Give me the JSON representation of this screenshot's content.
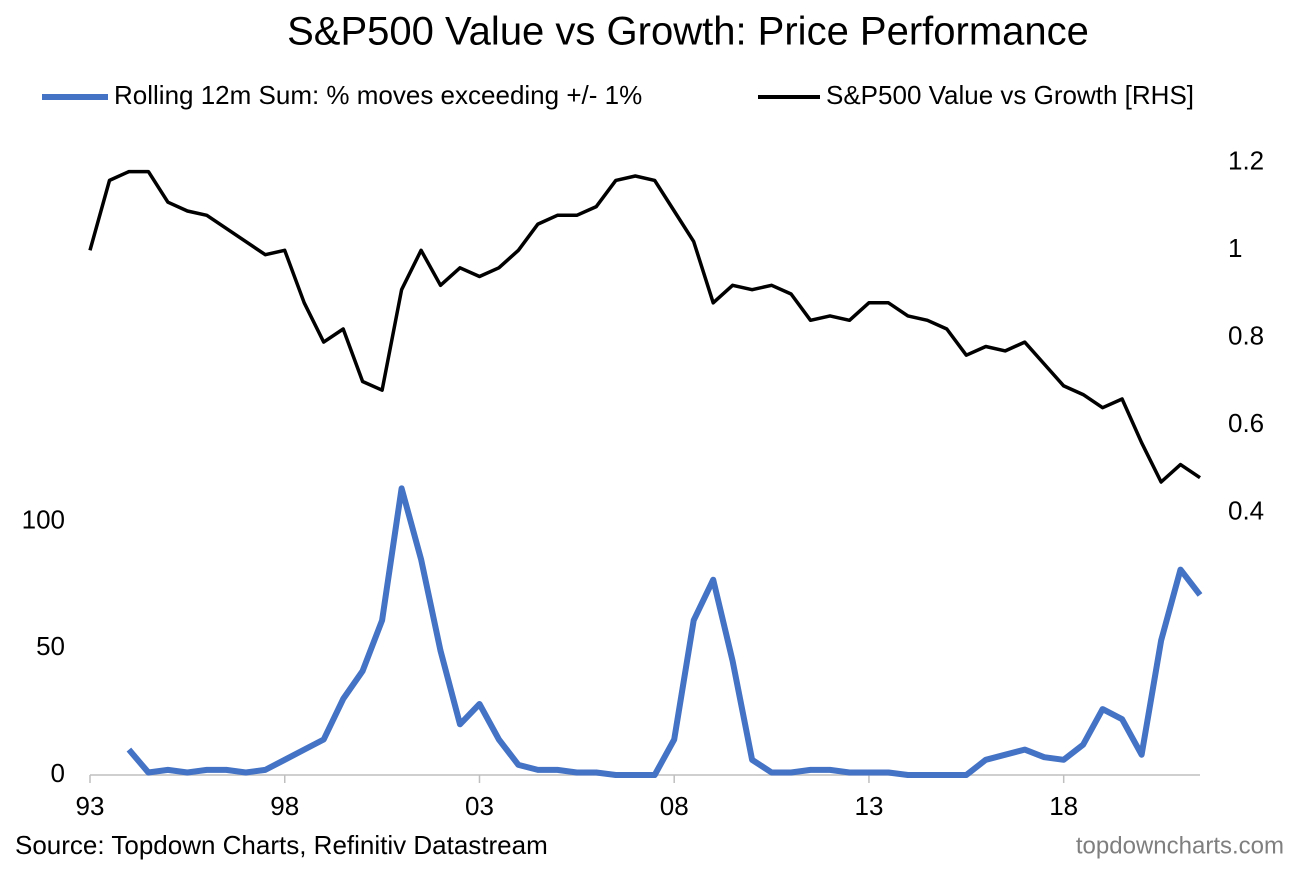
{
  "chart_data": {
    "type": "line",
    "title": "S&P500 Value vs Growth: Price Performance",
    "source": "Source: Topdown Charts, Refinitiv Datastream",
    "watermark": "topdowncharts.com",
    "x": [
      1993,
      1993.5,
      1994,
      1994.5,
      1995,
      1995.5,
      1996,
      1996.5,
      1997,
      1997.5,
      1998,
      1998.5,
      1999,
      1999.5,
      2000,
      2000.5,
      2001,
      2001.5,
      2002,
      2002.5,
      2003,
      2003.5,
      2004,
      2004.5,
      2005,
      2005.5,
      2006,
      2006.5,
      2007,
      2007.5,
      2008,
      2008.5,
      2009,
      2009.5,
      2010,
      2010.5,
      2011,
      2011.5,
      2012,
      2012.5,
      2013,
      2013.5,
      2014,
      2014.5,
      2015,
      2015.5,
      2016,
      2016.5,
      2017,
      2017.5,
      2018,
      2018.5,
      2019,
      2019.5,
      2020,
      2020.5,
      2021,
      2021.5
    ],
    "xlim": [
      1993,
      2021.5
    ],
    "xticks": [
      {
        "value": 1993,
        "label": "93"
      },
      {
        "value": 1998,
        "label": "98"
      },
      {
        "value": 2003,
        "label": "03"
      },
      {
        "value": 2008,
        "label": "08"
      },
      {
        "value": 2013,
        "label": "13"
      },
      {
        "value": 2018,
        "label": "18"
      }
    ],
    "ylim": [
      0,
      250
    ],
    "yticks": [
      0,
      50,
      100
    ],
    "y2lim": [
      -0.2,
      1.25
    ],
    "y2ticks": [
      0.4,
      0.6,
      0.8,
      1,
      1.2
    ],
    "series": [
      {
        "name": "Rolling 12m Sum: % moves exceeding +/- 1%",
        "color": "#4472c4",
        "values": [
          null,
          null,
          10,
          1,
          2,
          1,
          2,
          2,
          1,
          2,
          6,
          10,
          14,
          30,
          41,
          61,
          113,
          85,
          49,
          20,
          28,
          14,
          4,
          2,
          2,
          1,
          1,
          0,
          0,
          0,
          14,
          61,
          77,
          45,
          6,
          1,
          1,
          2,
          2,
          1,
          1,
          1,
          0,
          0,
          0,
          0,
          6,
          8,
          10,
          7,
          6,
          12,
          26,
          22,
          8,
          53,
          81,
          71
        ]
      },
      {
        "name": "S&P500 Value vs Growth  [RHS]",
        "color": "#000000",
        "axis": "y2",
        "values": [
          1.0,
          1.16,
          1.18,
          1.18,
          1.11,
          1.09,
          1.08,
          1.05,
          1.02,
          0.99,
          1.0,
          0.88,
          0.79,
          0.82,
          0.7,
          0.68,
          0.91,
          1.0,
          0.92,
          0.96,
          0.94,
          0.96,
          1.0,
          1.06,
          1.08,
          1.08,
          1.1,
          1.16,
          1.17,
          1.16,
          1.09,
          1.02,
          0.88,
          0.92,
          0.91,
          0.92,
          0.9,
          0.84,
          0.85,
          0.84,
          0.88,
          0.88,
          0.85,
          0.84,
          0.82,
          0.76,
          0.78,
          0.77,
          0.79,
          0.74,
          0.69,
          0.67,
          0.64,
          0.66,
          0.56,
          0.47,
          0.51,
          0.48
        ]
      }
    ]
  }
}
